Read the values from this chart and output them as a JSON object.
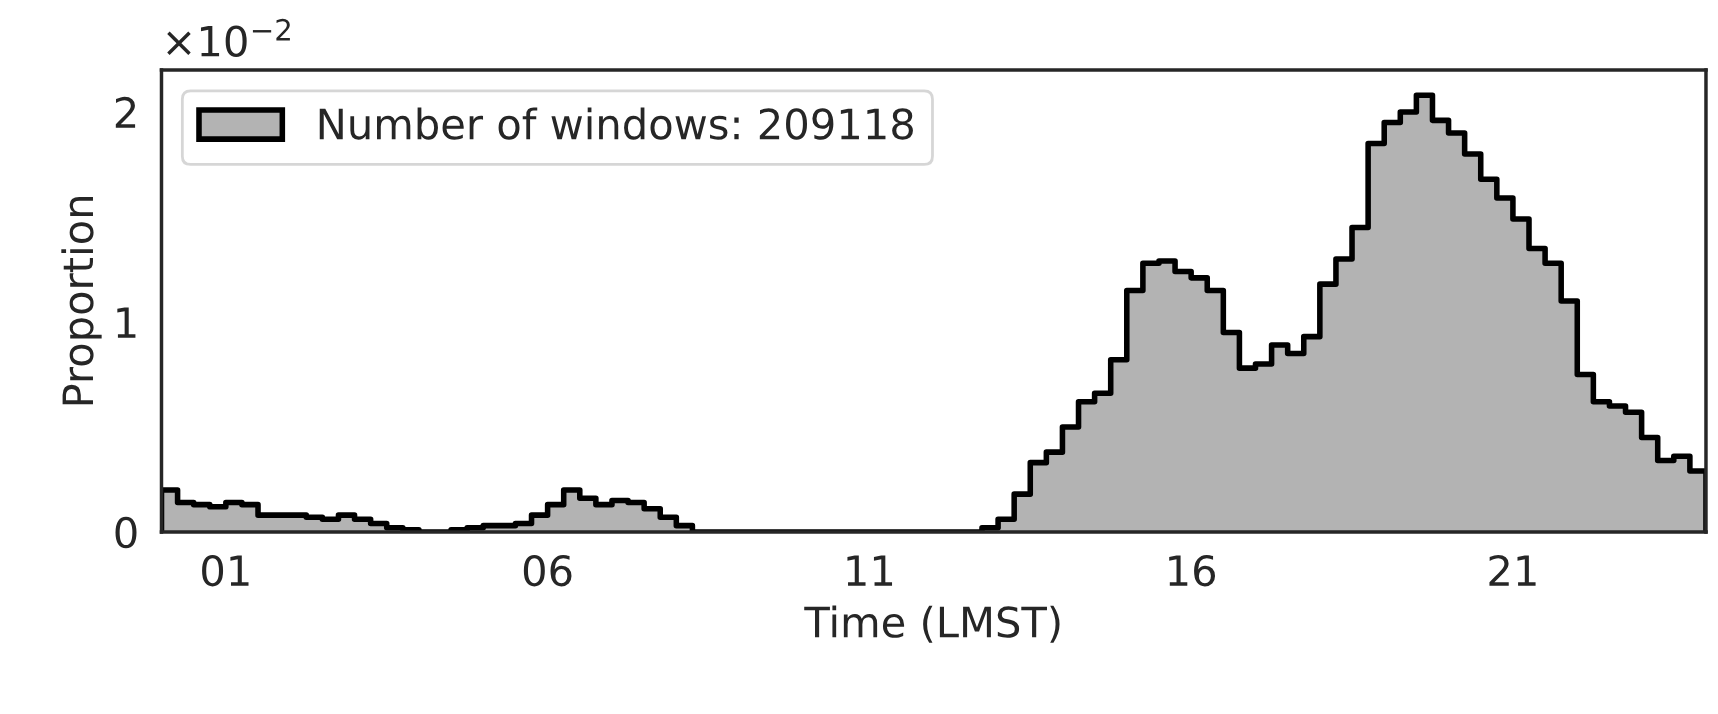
{
  "chart_data": {
    "type": "histogram",
    "xlabel": "Time (LMST)",
    "ylabel": "Proportion",
    "annotations": [
      "×10$^{−2}$"
    ],
    "bins": [
      0,
      0.25,
      0.5,
      0.75,
      1,
      1.25,
      1.5,
      1.75,
      2,
      2.25,
      2.5,
      2.75,
      3,
      3.25,
      3.5,
      3.75,
      4,
      4.25,
      4.5,
      4.75,
      5,
      5.25,
      5.5,
      5.75,
      6,
      6.25,
      6.5,
      6.75,
      7,
      7.25,
      7.5,
      7.75,
      8,
      8.25,
      8.5,
      8.75,
      9,
      9.25,
      9.5,
      9.75,
      10,
      10.25,
      10.5,
      10.75,
      11,
      11.25,
      11.5,
      11.75,
      12,
      12.25,
      12.5,
      12.75,
      13,
      13.25,
      13.5,
      13.75,
      14,
      14.25,
      14.5,
      14.75,
      15,
      15.25,
      15.5,
      15.75,
      16,
      16.25,
      16.5,
      16.75,
      17,
      17.25,
      17.5,
      17.75,
      18,
      18.25,
      18.5,
      18.75,
      19,
      19.25,
      19.5,
      19.75,
      20,
      20.25,
      20.5,
      20.75,
      21,
      21.25,
      21.5,
      21.75,
      22,
      22.25,
      22.5,
      22.75,
      23,
      23.25,
      23.5,
      23.75,
      24
    ],
    "series": [
      {
        "name": "Number of windows: 209118",
        "color": "#b3b3b3",
        "values": [
          0.2,
          0.14,
          0.13,
          0.12,
          0.14,
          0.13,
          0.08,
          0.08,
          0.08,
          0.07,
          0.06,
          0.08,
          0.06,
          0.04,
          0.02,
          0.01,
          0.0,
          0.0,
          0.01,
          0.02,
          0.03,
          0.03,
          0.04,
          0.08,
          0.13,
          0.2,
          0.16,
          0.13,
          0.15,
          0.14,
          0.11,
          0.07,
          0.03,
          0.0,
          0.0,
          0.0,
          0.0,
          0.0,
          0.0,
          0.0,
          0.0,
          0.0,
          0.0,
          0.0,
          0.0,
          0.0,
          0.0,
          0.0,
          0.0,
          0.0,
          0.0,
          0.02,
          0.06,
          0.18,
          0.33,
          0.38,
          0.5,
          0.62,
          0.66,
          0.82,
          1.15,
          1.28,
          1.29,
          1.24,
          1.21,
          1.15,
          0.95,
          0.78,
          0.8,
          0.89,
          0.85,
          0.93,
          1.18,
          1.3,
          1.45,
          1.85,
          1.95,
          2.0,
          2.08,
          1.96,
          1.9,
          1.8,
          1.68,
          1.59,
          1.49,
          1.35,
          1.28,
          1.1,
          0.75,
          0.62,
          0.6,
          0.57,
          0.45,
          0.34,
          0.36,
          0.29
        ]
      }
    ],
    "xlim": [
      0,
      24
    ],
    "xticks": [
      {
        "value": 1,
        "label": "01"
      },
      {
        "value": 6,
        "label": "06"
      },
      {
        "value": 11,
        "label": "11"
      },
      {
        "value": 16,
        "label": "16"
      },
      {
        "value": 21,
        "label": "21"
      }
    ],
    "ylim": [
      0,
      2.2
    ],
    "yticks": [
      0,
      1,
      2
    ],
    "grid": false,
    "legend": "top left"
  }
}
